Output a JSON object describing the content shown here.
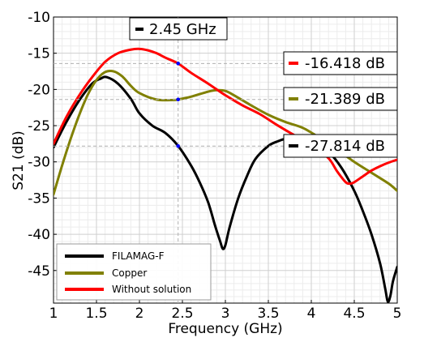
{
  "chart_data": {
    "type": "line",
    "xlabel": "Frequency (GHz)",
    "ylabel": "S21 (dB)",
    "xlim": [
      1,
      5
    ],
    "ylim": [
      -49.5,
      -10
    ],
    "xticks": [
      1,
      1.5,
      2,
      2.5,
      3,
      3.5,
      4,
      4.5,
      5
    ],
    "xtick_labels": [
      "1",
      "1.5",
      "2",
      "2.5",
      "3",
      "3.5",
      "4",
      "4.5",
      "5"
    ],
    "yticks": [
      -45,
      -40,
      -35,
      -30,
      -25,
      -20,
      -15,
      -10
    ],
    "ytick_labels": [
      "-45",
      "-40",
      "-35",
      "-30",
      "-25",
      "-20",
      "-15",
      "-10"
    ],
    "grid": true,
    "legend_position": "bottom-left",
    "series": [
      {
        "name": "FILAMAG-F",
        "color": "#000000",
        "x": [
          1.0,
          1.15,
          1.3,
          1.45,
          1.55,
          1.62,
          1.75,
          1.9,
          2.0,
          2.15,
          2.3,
          2.45,
          2.6,
          2.7,
          2.8,
          2.88,
          2.94,
          2.97,
          3.0,
          3.05,
          3.15,
          3.25,
          3.35,
          3.5,
          3.6,
          3.7,
          3.8,
          3.95,
          4.05,
          4.2,
          4.35,
          4.5,
          4.6,
          4.7,
          4.8,
          4.86,
          4.89,
          4.92,
          4.95,
          5.0
        ],
        "y": [
          -28.0,
          -24.5,
          -21.5,
          -19.2,
          -18.5,
          -18.3,
          -19.2,
          -21.3,
          -23.3,
          -25.0,
          -26.0,
          -27.8,
          -30.5,
          -32.8,
          -35.6,
          -38.8,
          -41.0,
          -42.0,
          -41.5,
          -39.0,
          -35.0,
          -32.0,
          -29.6,
          -27.8,
          -27.2,
          -26.8,
          -26.6,
          -26.8,
          -27.3,
          -28.6,
          -30.8,
          -34.0,
          -36.8,
          -40.0,
          -44.0,
          -47.5,
          -49.3,
          -48.5,
          -46.5,
          -44.5
        ]
      },
      {
        "name": "Copper",
        "color": "#808000",
        "x": [
          1.0,
          1.1,
          1.2,
          1.3,
          1.4,
          1.5,
          1.6,
          1.7,
          1.8,
          1.9,
          2.0,
          2.2,
          2.4,
          2.45,
          2.6,
          2.8,
          2.9,
          3.0,
          3.1,
          3.3,
          3.5,
          3.7,
          3.9,
          4.1,
          4.3,
          4.5,
          4.7,
          4.9,
          5.0
        ],
        "y": [
          -34.5,
          -30.5,
          -26.8,
          -23.5,
          -20.7,
          -18.7,
          -17.6,
          -17.5,
          -18.2,
          -19.5,
          -20.5,
          -21.4,
          -21.45,
          -21.389,
          -21.0,
          -20.3,
          -20.1,
          -20.2,
          -20.8,
          -22.2,
          -23.5,
          -24.5,
          -25.3,
          -26.7,
          -28.3,
          -30.0,
          -31.5,
          -33.0,
          -34.0
        ]
      },
      {
        "name": "Without solution",
        "color": "#ff0000",
        "x": [
          1.0,
          1.15,
          1.3,
          1.45,
          1.6,
          1.75,
          1.9,
          2.0,
          2.1,
          2.2,
          2.3,
          2.45,
          2.6,
          2.8,
          3.0,
          3.2,
          3.4,
          3.6,
          3.8,
          4.0,
          4.2,
          4.3,
          4.4,
          4.45,
          4.5,
          4.6,
          4.7,
          4.8,
          4.9,
          5.0
        ],
        "y": [
          -27.5,
          -23.8,
          -20.8,
          -18.3,
          -16.2,
          -15.0,
          -14.5,
          -14.4,
          -14.6,
          -15.0,
          -15.6,
          -16.418,
          -17.7,
          -19.2,
          -20.8,
          -22.2,
          -23.4,
          -24.9,
          -26.3,
          -27.6,
          -29.5,
          -31.3,
          -32.8,
          -33.0,
          -32.8,
          -32.0,
          -31.2,
          -30.6,
          -30.1,
          -29.7
        ]
      }
    ],
    "marker_line_x": 2.45,
    "markers": [
      {
        "x": 2.45,
        "y": -16.418,
        "color": "#0000ff"
      },
      {
        "x": 2.45,
        "y": -21.389,
        "color": "#0000ff"
      },
      {
        "x": 2.45,
        "y": -27.814,
        "color": "#0000ff"
      }
    ],
    "annotations": [
      {
        "text": "2.45 GHz",
        "color": "#000000"
      },
      {
        "text": "-16.418 dB",
        "color": "#ff0000"
      },
      {
        "text": "-21.389 dB",
        "color": "#808000"
      },
      {
        "text": "-27.814 dB",
        "color": "#000000"
      }
    ]
  }
}
